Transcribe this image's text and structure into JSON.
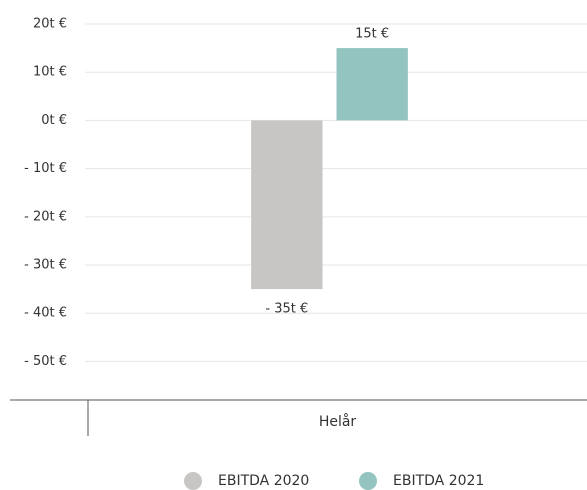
{
  "chart_data": {
    "type": "bar",
    "categories": [
      "Helår"
    ],
    "series": [
      {
        "name": "EBITDA 2020",
        "color": "#c8c6c4",
        "values": [
          -35
        ],
        "value_labels": [
          "- 35t €"
        ]
      },
      {
        "name": "EBITDA 2021",
        "color": "#93c4c0",
        "values": [
          15
        ],
        "value_labels": [
          "15t €"
        ]
      }
    ],
    "ylim": [
      -58,
      20
    ],
    "yticks": [
      {
        "value": 20,
        "label": "20t €"
      },
      {
        "value": 10,
        "label": "10t €"
      },
      {
        "value": 0,
        "label": "0t €"
      },
      {
        "value": -10,
        "label": "- 10t €"
      },
      {
        "value": -20,
        "label": "- 20t €"
      },
      {
        "value": -30,
        "label": "- 30t €"
      },
      {
        "value": -40,
        "label": "- 40t €"
      },
      {
        "value": -50,
        "label": "- 50t €"
      }
    ],
    "grid": true,
    "legend": "bottom"
  }
}
